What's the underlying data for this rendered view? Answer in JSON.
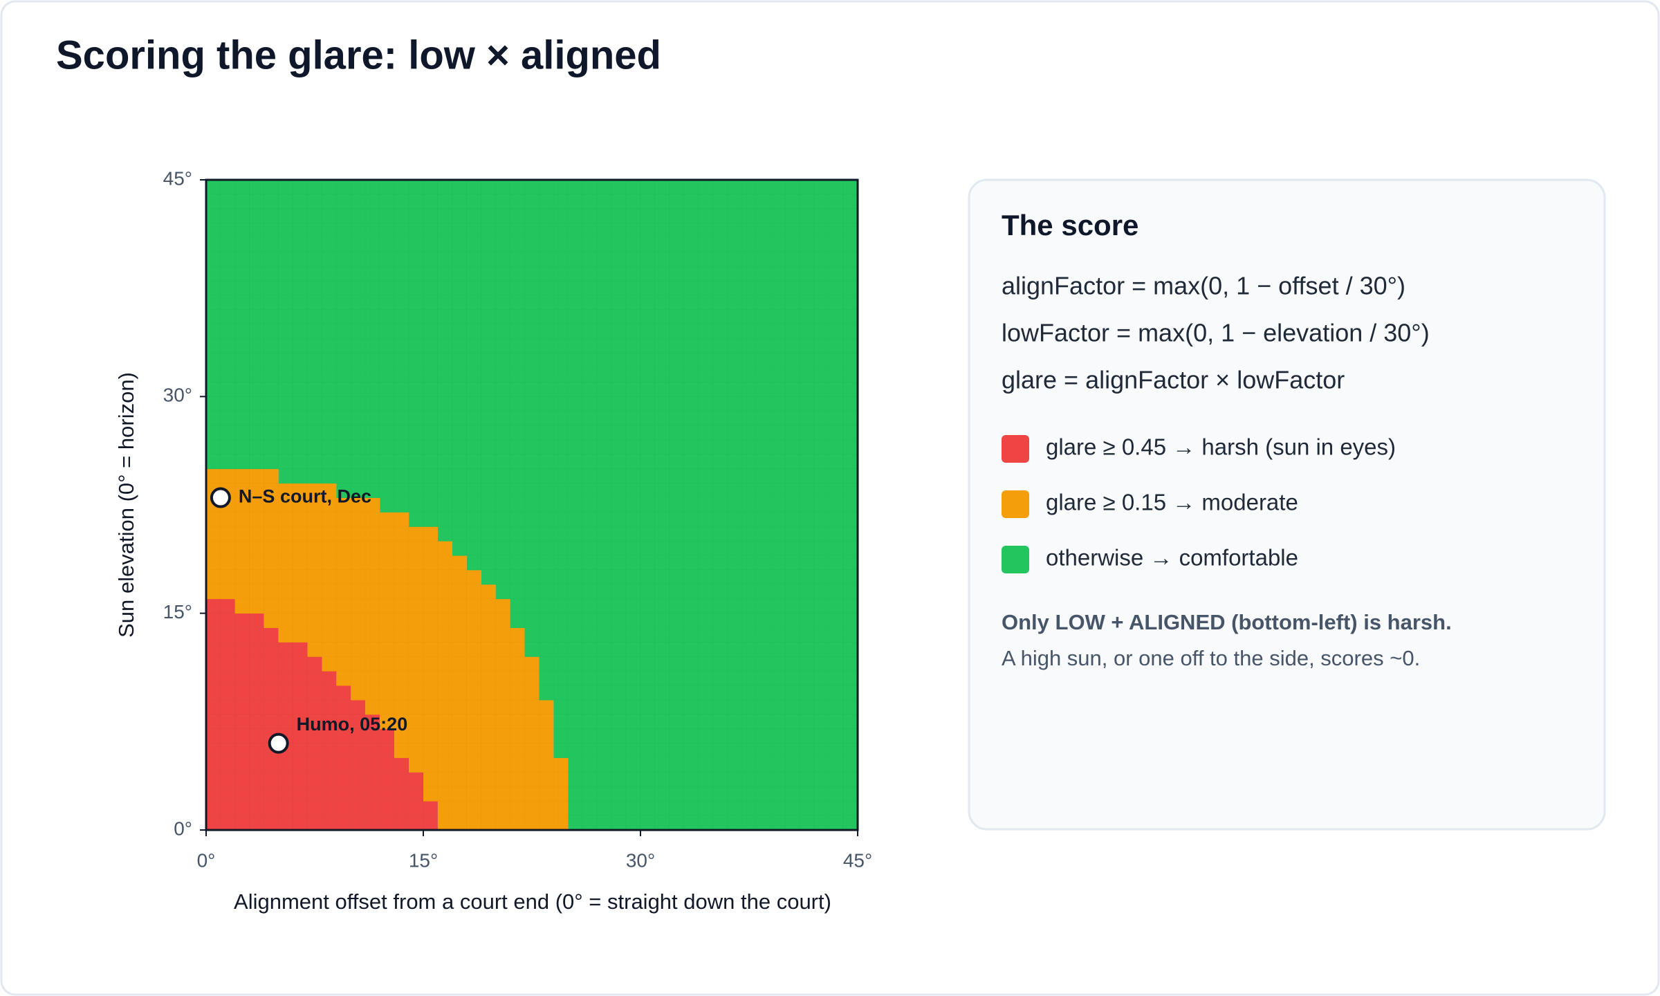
{
  "chart_data": {
    "type": "heatmap",
    "title": "Scoring the glare: low × aligned",
    "xlabel": "Alignment offset from a court end (0° = straight down the court)",
    "ylabel": "Sun elevation (0° = horizon)",
    "xlim": [
      0,
      45
    ],
    "ylim": [
      0,
      45
    ],
    "xticks": [
      {
        "value": 0,
        "label": "0°"
      },
      {
        "value": 15,
        "label": "15°"
      },
      {
        "value": 30,
        "label": "30°"
      },
      {
        "value": 45,
        "label": "45°"
      }
    ],
    "yticks": [
      {
        "value": 0,
        "label": "0°"
      },
      {
        "value": 15,
        "label": "15°"
      },
      {
        "value": 30,
        "label": "30°"
      },
      {
        "value": 45,
        "label": "45°"
      }
    ],
    "y": [
      0,
      1,
      2,
      3,
      4,
      5,
      6,
      7,
      8,
      9,
      10,
      11,
      12,
      13,
      14,
      15,
      16,
      17,
      18,
      19,
      20,
      21,
      22,
      23,
      24,
      25,
      26,
      27,
      28,
      29,
      30,
      31,
      32,
      33,
      34,
      35,
      36,
      37,
      38,
      39,
      40,
      41,
      42,
      43,
      44
    ],
    "series": [
      {
        "name": "glare ≥ 0.45 → harsh (sun in eyes)",
        "color": "#ef4444",
        "values": [
          16,
          16,
          15,
          15,
          14,
          13,
          13,
          12,
          11,
          10,
          9,
          8,
          7,
          5,
          4,
          2,
          0,
          0,
          0,
          0,
          0,
          0,
          0,
          0,
          0,
          0,
          0,
          0,
          0,
          0,
          0,
          0,
          0,
          0,
          0,
          0,
          0,
          0,
          0,
          0,
          0,
          0,
          0,
          0,
          0
        ]
      },
      {
        "name": "glare ≥ 0.15 → moderate",
        "color": "#f59e0b",
        "values": [
          9,
          9,
          10,
          10,
          11,
          11,
          11,
          12,
          13,
          13,
          14,
          15,
          15,
          17,
          17,
          19,
          20,
          19,
          18,
          17,
          16,
          14,
          12,
          9,
          5,
          0,
          0,
          0,
          0,
          0,
          0,
          0,
          0,
          0,
          0,
          0,
          0,
          0,
          0,
          0,
          0,
          0,
          0,
          0,
          0
        ]
      },
      {
        "name": "otherwise → comfortable",
        "color": "#22c55e",
        "values": [
          20,
          20,
          20,
          20,
          20,
          21,
          21,
          21,
          21,
          22,
          22,
          22,
          23,
          23,
          24,
          24,
          25,
          26,
          27,
          28,
          29,
          31,
          33,
          36,
          40,
          45,
          45,
          45,
          45,
          45,
          45,
          45,
          45,
          45,
          45,
          45,
          45,
          45,
          45,
          45,
          45,
          45,
          45,
          45,
          45
        ]
      }
    ],
    "points": [
      {
        "label": "N–S court, Dec",
        "x": 1,
        "y": 23
      },
      {
        "label": "Humo, 05:20",
        "x": 5,
        "y": 6
      }
    ]
  },
  "panel": {
    "title": "The score",
    "formulas": [
      "alignFactor = max(0, 1 − offset / 30°)",
      "lowFactor = max(0, 1 − elevation / 30°)",
      "glare = alignFactor × lowFactor"
    ],
    "note_bold": "Only LOW + ALIGNED (bottom-left) is harsh.",
    "note": "A high sun, or one off to the side, scores ~0."
  }
}
